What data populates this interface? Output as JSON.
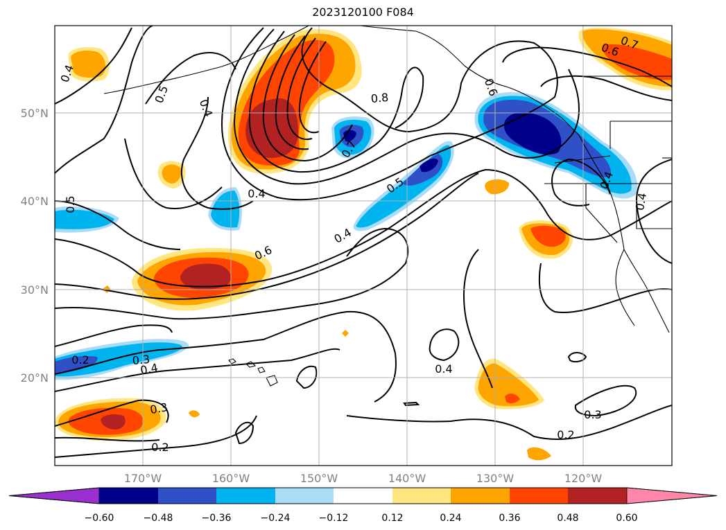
{
  "title": "2023120100 F084",
  "map": {
    "lat_labels": [
      "50°N",
      "40°N",
      "30°N",
      "20°N"
    ],
    "lon_labels": [
      "170°W",
      "160°W",
      "150°W",
      "140°W",
      "130°W",
      "120°W"
    ],
    "contour_labels": [
      {
        "text": "0.4",
        "rot": -70
      },
      {
        "text": "0.5",
        "rot": -70
      },
      {
        "text": "0.4",
        "rot": 70
      },
      {
        "text": "0.8",
        "rot": -5
      },
      {
        "text": "0.7",
        "rot": -60
      },
      {
        "text": "0.6",
        "rot": 70
      },
      {
        "text": "0.5",
        "rot": -90
      },
      {
        "text": "0.4",
        "rot": 0
      },
      {
        "text": "0.5",
        "rot": -35
      },
      {
        "text": "0.4",
        "rot": -30
      },
      {
        "text": "0.6",
        "rot": -25
      },
      {
        "text": "0.2",
        "rot": 0
      },
      {
        "text": "0.3",
        "rot": -5
      },
      {
        "text": "0.4",
        "rot": -10
      },
      {
        "text": "0.3",
        "rot": -10
      },
      {
        "text": "0.2",
        "rot": 0
      },
      {
        "text": "0.4",
        "rot": 0
      },
      {
        "text": "0.3",
        "rot": 0
      },
      {
        "text": "0.2",
        "rot": 0
      },
      {
        "text": "0.4",
        "rot": -70
      },
      {
        "text": "0.4",
        "rot": -80
      },
      {
        "text": "0.6",
        "rot": 20
      },
      {
        "text": "0.7",
        "rot": 20
      }
    ]
  },
  "colorbar": {
    "ticks": [
      "−0.60",
      "−0.48",
      "−0.36",
      "−0.24",
      "−0.12",
      "0.12",
      "0.24",
      "0.36",
      "0.48",
      "0.60"
    ],
    "colors": [
      "#9b30d0",
      "#00008b",
      "#3050c8",
      "#00b4f0",
      "#aadcf8",
      "#ffffff",
      "#ffe680",
      "#ffa500",
      "#ff4500",
      "#b22222",
      "#ff88aa"
    ]
  }
}
